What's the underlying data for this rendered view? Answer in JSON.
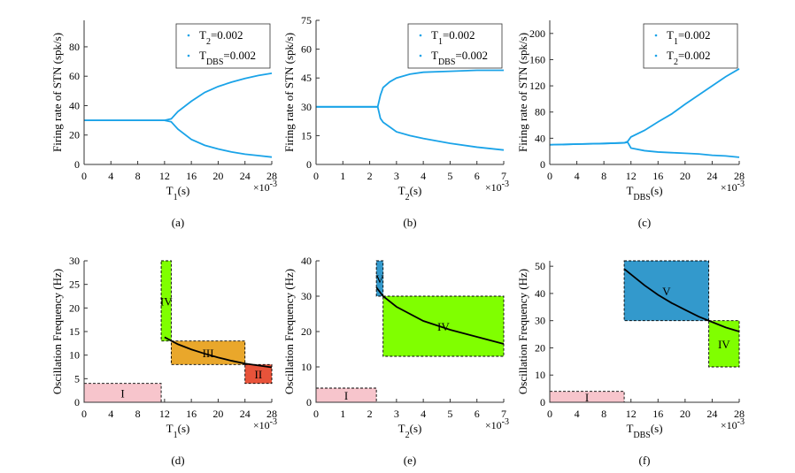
{
  "chart_data": [
    {
      "type": "line",
      "y_label": "Firing rate of STN (spk/s)",
      "x_label": {
        "base": "T",
        "sub": "1",
        "rest": "(s)"
      },
      "x_exponent": {
        "base": "×10",
        "sup": "-3"
      },
      "caption": "(a)",
      "x": [
        0,
        4,
        8,
        12,
        13,
        14,
        16,
        18,
        20,
        22,
        24,
        26,
        28
      ],
      "series": [
        {
          "color": "#1aa3e8",
          "values": [
            30,
            30,
            30,
            30,
            31,
            36,
            43,
            49,
            53,
            56,
            58.5,
            60.5,
            62
          ]
        },
        {
          "color": "#1aa3e8",
          "values": [
            30,
            30,
            30,
            30,
            29,
            24,
            17,
            13,
            10.5,
            8.5,
            7,
            6,
            5
          ]
        }
      ],
      "legend": [
        {
          "base": "T",
          "sub": "2",
          "rest": "=0.002"
        },
        {
          "base": "T",
          "sub": "DBS",
          "rest": "=0.002"
        }
      ],
      "legend_position": "upper right",
      "xlim": [
        0,
        28
      ],
      "xticks": [
        0,
        4,
        8,
        12,
        16,
        20,
        24,
        28
      ],
      "ylim": [
        0,
        98
      ],
      "yticks": [
        0,
        20,
        40,
        60,
        80
      ]
    },
    {
      "type": "line",
      "y_label": "Firing rate of STN (spk/s)",
      "x_label": {
        "base": "T",
        "sub": "2",
        "rest": "(s)"
      },
      "x_exponent": {
        "base": "×10",
        "sup": "-3"
      },
      "caption": "(b)",
      "x": [
        0,
        1,
        2,
        2.3,
        2.4,
        2.5,
        2.75,
        3,
        3.5,
        4,
        5,
        6,
        7
      ],
      "series": [
        {
          "color": "#1aa3e8",
          "values": [
            30,
            30,
            30,
            30,
            36,
            40,
            43,
            45,
            47,
            48,
            48.5,
            49,
            49
          ]
        },
        {
          "color": "#1aa3e8",
          "values": [
            30,
            30,
            30,
            30,
            24,
            22,
            19.5,
            17,
            15,
            13.5,
            11,
            9,
            7.5
          ]
        }
      ],
      "legend": [
        {
          "base": "T",
          "sub": "1",
          "rest": "=0.002"
        },
        {
          "base": "T",
          "sub": "DBS",
          "rest": "=0.002"
        }
      ],
      "legend_position": "upper right",
      "xlim": [
        0,
        7
      ],
      "xticks": [
        0,
        1,
        2,
        3,
        4,
        5,
        6,
        7
      ],
      "ylim": [
        0,
        75
      ],
      "yticks": [
        0,
        15,
        30,
        45,
        60,
        75
      ]
    },
    {
      "type": "line",
      "y_label": "Firing rate of STN (spk/s)",
      "x_label": {
        "base": "T",
        "sub": "DBS",
        "rest": "(s)"
      },
      "x_exponent": {
        "base": "×10",
        "sup": "-3"
      },
      "caption": "(c)",
      "x": [
        0,
        4,
        8,
        11,
        11.5,
        12,
        14,
        16,
        18,
        20,
        22,
        24,
        26,
        28
      ],
      "series": [
        {
          "color": "#1aa3e8",
          "values": [
            30,
            31,
            32,
            33,
            35,
            42,
            52,
            65,
            77,
            92,
            106,
            120,
            134,
            146
          ]
        },
        {
          "color": "#1aa3e8",
          "values": [
            30,
            31,
            32,
            33,
            34,
            25,
            21,
            19,
            18,
            17,
            16,
            14,
            13,
            11
          ]
        }
      ],
      "legend": [
        {
          "base": "T",
          "sub": "1",
          "rest": "=0.002"
        },
        {
          "base": "T",
          "sub": "2",
          "rest": "=0.002"
        }
      ],
      "legend_position": "upper right",
      "xlim": [
        0,
        28
      ],
      "xticks": [
        0,
        4,
        8,
        12,
        16,
        20,
        24,
        28
      ],
      "ylim": [
        0,
        220
      ],
      "yticks": [
        0,
        40,
        80,
        120,
        160,
        200
      ]
    },
    {
      "type": "region",
      "y_label": "Oscillation Frequency (Hz)",
      "x_label": {
        "base": "T",
        "sub": "1",
        "rest": "(s)"
      },
      "x_exponent": {
        "base": "×10",
        "sup": "-3"
      },
      "caption": "(d)",
      "regions": [
        {
          "label": "I",
          "color": "#f7c5cc",
          "x": [
            0,
            11.5
          ],
          "y": [
            0,
            4
          ]
        },
        {
          "label": "IV",
          "color": "#80ff00",
          "x": [
            11.5,
            13
          ],
          "y": [
            13,
            30
          ]
        },
        {
          "label": "III",
          "color": "#e9a72b",
          "x": [
            13,
            24
          ],
          "y": [
            8,
            13
          ]
        },
        {
          "label": "II",
          "color": "#e8533a",
          "x": [
            24,
            28
          ],
          "y": [
            4,
            8
          ]
        }
      ],
      "curve": {
        "color": "#000000",
        "x": [
          12,
          14,
          16,
          18,
          20,
          22,
          24,
          26,
          28
        ],
        "values": [
          13.8,
          12.3,
          11.2,
          10.3,
          9.5,
          8.8,
          8.2,
          7.8,
          7.4
        ]
      },
      "xlim": [
        0,
        28
      ],
      "xticks": [
        0,
        4,
        8,
        12,
        16,
        20,
        24,
        28
      ],
      "ylim": [
        0,
        30
      ],
      "yticks": [
        0,
        5,
        10,
        15,
        20,
        25,
        30
      ]
    },
    {
      "type": "region",
      "y_label": "Oscillation Frequency (Hz)",
      "x_label": {
        "base": "T",
        "sub": "2",
        "rest": "(s)"
      },
      "x_exponent": {
        "base": "×10",
        "sup": "-3"
      },
      "caption": "(e)",
      "regions": [
        {
          "label": "I",
          "color": "#f7c5cc",
          "x": [
            0,
            2.25
          ],
          "y": [
            0,
            4
          ]
        },
        {
          "label": "V",
          "color": "#3399cc",
          "x": [
            2.25,
            2.5
          ],
          "y": [
            30,
            40
          ]
        },
        {
          "label": "IV",
          "color": "#80ff00",
          "x": [
            2.5,
            7
          ],
          "y": [
            13,
            30
          ]
        }
      ],
      "curve": {
        "color": "#000000",
        "x": [
          2.25,
          2.5,
          3,
          4,
          5,
          6,
          7
        ],
        "values": [
          32.5,
          30,
          27,
          23,
          20.5,
          18.5,
          16.5
        ]
      },
      "xlim": [
        0,
        7
      ],
      "xticks": [
        0,
        1,
        2,
        3,
        4,
        5,
        6,
        7
      ],
      "ylim": [
        0,
        40
      ],
      "yticks": [
        0,
        10,
        20,
        30,
        40
      ]
    },
    {
      "type": "region",
      "y_label": "Oscillation Frequency (Hz)",
      "x_label": {
        "base": "T",
        "sub": "DBS",
        "rest": "(s)"
      },
      "x_exponent": {
        "base": "×10",
        "sup": "-3"
      },
      "caption": "(f)",
      "regions": [
        {
          "label": "I",
          "color": "#f7c5cc",
          "x": [
            0,
            11
          ],
          "y": [
            0,
            4
          ]
        },
        {
          "label": "V",
          "color": "#3399cc",
          "x": [
            11,
            23.5
          ],
          "y": [
            30,
            52
          ]
        },
        {
          "label": "IV",
          "color": "#80ff00",
          "x": [
            23.5,
            28
          ],
          "y": [
            13,
            30
          ]
        }
      ],
      "curve": {
        "color": "#000000",
        "x": [
          11,
          14,
          16,
          18,
          20,
          22,
          24,
          26,
          28
        ],
        "values": [
          49,
          43,
          39.5,
          36.5,
          34,
          31.5,
          29.5,
          27.5,
          26
        ]
      },
      "xlim": [
        0,
        28
      ],
      "xticks": [
        0,
        4,
        8,
        12,
        16,
        20,
        24,
        28
      ],
      "ylim": [
        0,
        52
      ],
      "yticks": [
        0,
        10,
        20,
        30,
        40,
        50
      ]
    }
  ]
}
